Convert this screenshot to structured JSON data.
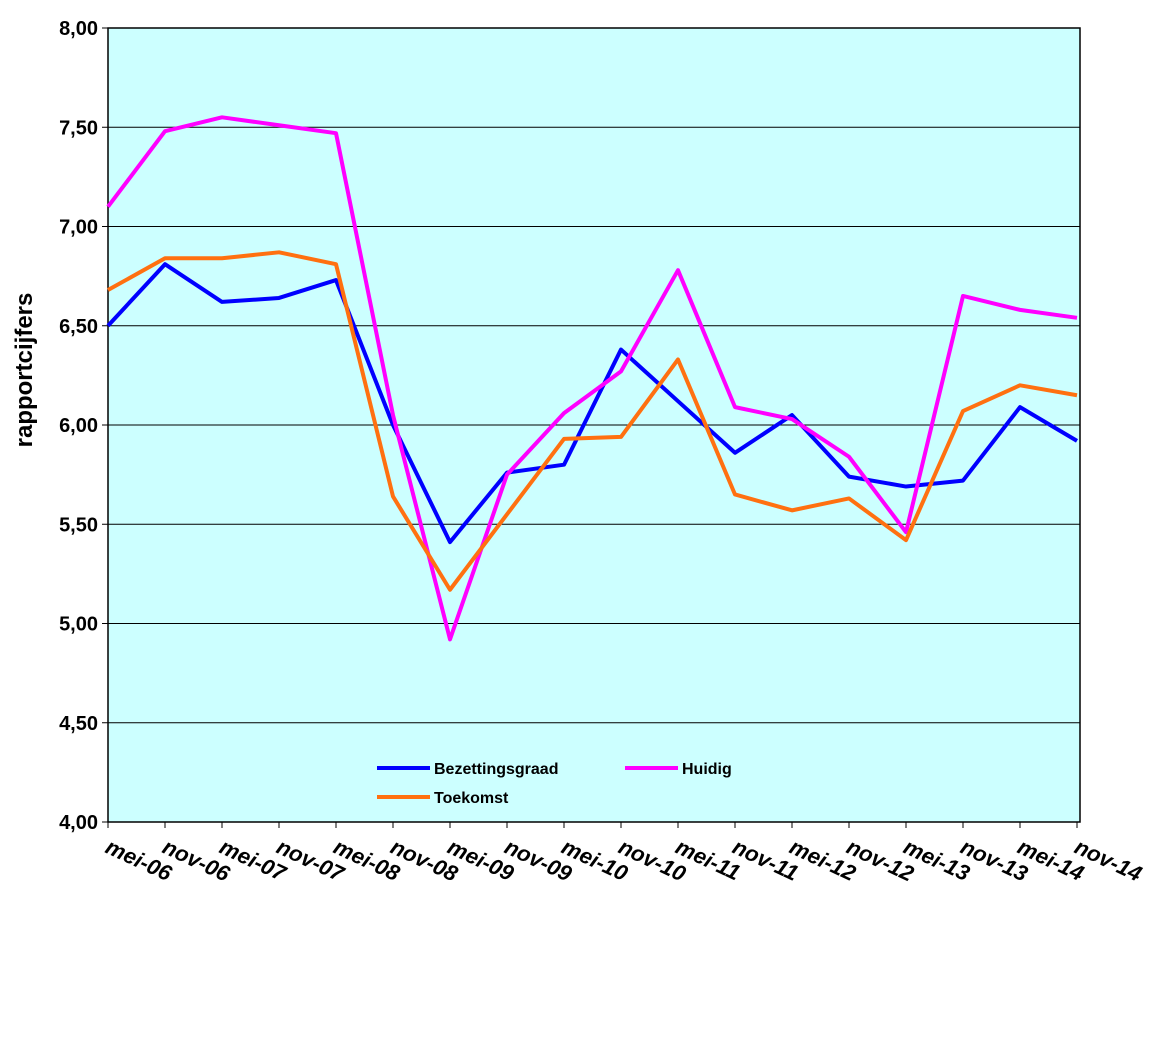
{
  "chart_data": {
    "type": "line",
    "y_label": "rapportcijfers",
    "categories": [
      "mei-06",
      "nov-06",
      "mei-07",
      "nov-07",
      "mei-08",
      "nov-08",
      "mei-09",
      "nov-09",
      "mei-10",
      "nov-10",
      "mei-11",
      "nov-11",
      "mei-12",
      "nov-12",
      "mei-13",
      "nov-13",
      "mei-14",
      "nov-14"
    ],
    "series": [
      {
        "name": "Bezettingsgraad",
        "color": "#0000ff",
        "values": [
          6.5,
          6.81,
          6.62,
          6.64,
          6.73,
          6.0,
          5.41,
          5.76,
          5.8,
          6.38,
          6.12,
          5.86,
          6.05,
          5.74,
          5.69,
          5.72,
          6.09,
          5.92
        ]
      },
      {
        "name": "Huidig",
        "color": "#ff00ff",
        "values": [
          7.1,
          7.48,
          7.55,
          7.51,
          7.47,
          6.05,
          4.92,
          5.75,
          6.06,
          6.27,
          6.78,
          6.09,
          6.03,
          5.84,
          5.46,
          6.65,
          6.58,
          6.54
        ]
      },
      {
        "name": "Toekomst",
        "color": "#ff7010",
        "values": [
          6.68,
          6.84,
          6.84,
          6.87,
          6.81,
          5.64,
          5.17,
          5.55,
          5.93,
          5.94,
          6.33,
          5.65,
          5.57,
          5.63,
          5.42,
          6.07,
          6.2,
          6.15
        ]
      }
    ],
    "ylim": [
      4,
      8
    ],
    "yticks": [
      {
        "value": 4,
        "label": "4,00"
      },
      {
        "value": 4.5,
        "label": "4,50"
      },
      {
        "value": 5,
        "label": "5,00"
      },
      {
        "value": 5.5,
        "label": "5,50"
      },
      {
        "value": 6,
        "label": "6,00"
      },
      {
        "value": 6.5,
        "label": "6,50"
      },
      {
        "value": 7,
        "label": "7,00"
      },
      {
        "value": 7.5,
        "label": "7,50"
      },
      {
        "value": 8,
        "label": "8,00"
      }
    ],
    "grid": true,
    "plot_background": "#ccffff"
  }
}
